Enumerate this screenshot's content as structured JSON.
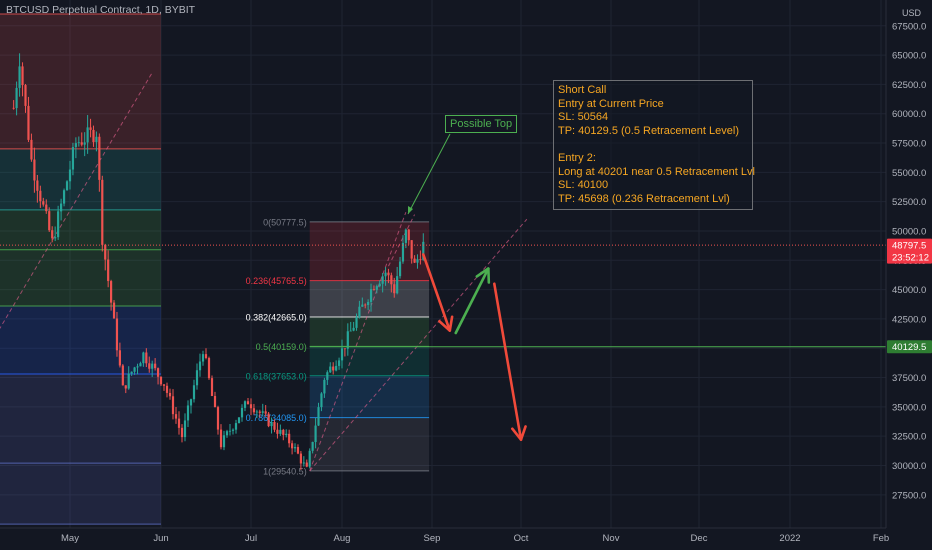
{
  "header": {
    "title": "BTCUSD Perpetual Contract, 1D, BYBIT"
  },
  "axis": {
    "currency": "USD"
  },
  "colors": {
    "background": "#131722",
    "up": "#26a69a",
    "down": "#ef5350",
    "arrow_red": "#f04a3a",
    "arrow_green": "#4caf50",
    "note_text": "#f5a623",
    "grid": "#1f2432"
  },
  "annotations": {
    "possible_top": "Possible Top",
    "trade_note": {
      "lines": [
        "Short Call",
        "Entry at Current Price",
        "SL: 50564",
        "TP: 40129.5 (0.5 Retracement Level)",
        "",
        "Entry 2:",
        "Long at 40201 near 0.5 Retracement Lvl",
        "SL: 40100",
        "TP: 45698 (0.236 Retracement Lvl)"
      ]
    }
  },
  "chart_data": {
    "type": "candlestick",
    "title": "BTCUSD Perpetual Contract, 1D, BYBIT",
    "y_axis_ticks": [
      "27500.0",
      "30000.0",
      "32500.0",
      "35000.0",
      "37500.0",
      "40000.0",
      "42500.0",
      "45000.0",
      "47500.0",
      "50000.0",
      "52500.0",
      "55000.0",
      "57500.0",
      "60000.0",
      "62500.0",
      "65000.0",
      "67500.0"
    ],
    "ylim": [
      25000,
      69000
    ],
    "x_axis_ticks": [
      "May",
      "Jun",
      "Jul",
      "Aug",
      "Sep",
      "Oct",
      "Nov",
      "Dec",
      "2022",
      "Feb"
    ],
    "grid": true,
    "last_price": {
      "label": "48797.5",
      "value": 48797.5,
      "countdown": "23:52:12"
    },
    "horizontal_line": {
      "label": "40129.5",
      "value": 40129.5
    },
    "price_segments": [
      {
        "date": "2021-04-12",
        "price": 60500
      },
      {
        "date": "2021-04-14",
        "price": 64800
      },
      {
        "date": "2021-04-18",
        "price": 56000
      },
      {
        "date": "2021-04-25",
        "price": 49000
      },
      {
        "date": "2021-05-03",
        "price": 57500
      },
      {
        "date": "2021-05-10",
        "price": 58500
      },
      {
        "date": "2021-05-12",
        "price": 49500
      },
      {
        "date": "2021-05-19",
        "price": 36500
      },
      {
        "date": "2021-05-22",
        "price": 38000
      },
      {
        "date": "2021-05-26",
        "price": 39500
      },
      {
        "date": "2021-06-02",
        "price": 37000
      },
      {
        "date": "2021-06-08",
        "price": 32500
      },
      {
        "date": "2021-06-15",
        "price": 40000
      },
      {
        "date": "2021-06-21",
        "price": 31800
      },
      {
        "date": "2021-06-30",
        "price": 35500
      },
      {
        "date": "2021-07-08",
        "price": 33500
      },
      {
        "date": "2021-07-15",
        "price": 31800
      },
      {
        "date": "2021-07-20",
        "price": 29600
      },
      {
        "date": "2021-07-26",
        "price": 37500
      },
      {
        "date": "2021-08-01",
        "price": 39800
      },
      {
        "date": "2021-08-06",
        "price": 42500
      },
      {
        "date": "2021-08-12",
        "price": 45500
      },
      {
        "date": "2021-08-16",
        "price": 46500
      },
      {
        "date": "2021-08-19",
        "price": 45000
      },
      {
        "date": "2021-08-23",
        "price": 49800
      },
      {
        "date": "2021-08-26",
        "price": 47000
      },
      {
        "date": "2021-08-29",
        "price": 48797.5
      }
    ],
    "fib_retracements": [
      {
        "name": "fib-left",
        "from": "2021-04-01",
        "to": "2021-06-01",
        "levels": [
          {
            "price": 68500,
            "color": "#ef5350"
          },
          {
            "price": 57000,
            "color": "#ef5350"
          },
          {
            "price": 51800,
            "color": "#26a69a"
          },
          {
            "price": 48400,
            "color": "#4caf50"
          },
          {
            "price": 43600,
            "color": "#4caf50"
          },
          {
            "price": 37800,
            "color": "#2962ff"
          },
          {
            "price": 30200,
            "color": "#5c6bc0"
          },
          {
            "price": 25000,
            "color": "#5c6bc0"
          }
        ]
      },
      {
        "name": "fib-right",
        "from": "2021-07-21",
        "to": "2021-08-31",
        "levels": [
          {
            "label": "0(50777.5)",
            "price": 50777.5,
            "color": "#787b86"
          },
          {
            "label": "0.236(45765.5)",
            "price": 45765.5,
            "color": "#f23645"
          },
          {
            "label": "0.382(42665.0)",
            "price": 42665.0,
            "color": "#ffffff"
          },
          {
            "label": "0.5(40159.0)",
            "price": 40159.0,
            "color": "#4caf50"
          },
          {
            "label": "0.618(37653.0)",
            "price": 37653.0,
            "color": "#089981"
          },
          {
            "label": "0.786(34085.0)",
            "price": 34085.0,
            "color": "#2196f3"
          },
          {
            "label": "1(29540.5)",
            "price": 29540.5,
            "color": "#787b86"
          }
        ]
      }
    ],
    "arrows": [
      {
        "color": "red",
        "from": {
          "date": "2021-08-29",
          "price": 48000
        },
        "to": {
          "date": "2021-09-07",
          "price": 41500
        }
      },
      {
        "color": "green",
        "from": {
          "date": "2021-09-09",
          "price": 41300
        },
        "to": {
          "date": "2021-09-20",
          "price": 46800
        }
      },
      {
        "color": "red",
        "from": {
          "date": "2021-09-22",
          "price": 45500
        },
        "to": {
          "date": "2021-10-01",
          "price": 32200
        }
      }
    ]
  }
}
